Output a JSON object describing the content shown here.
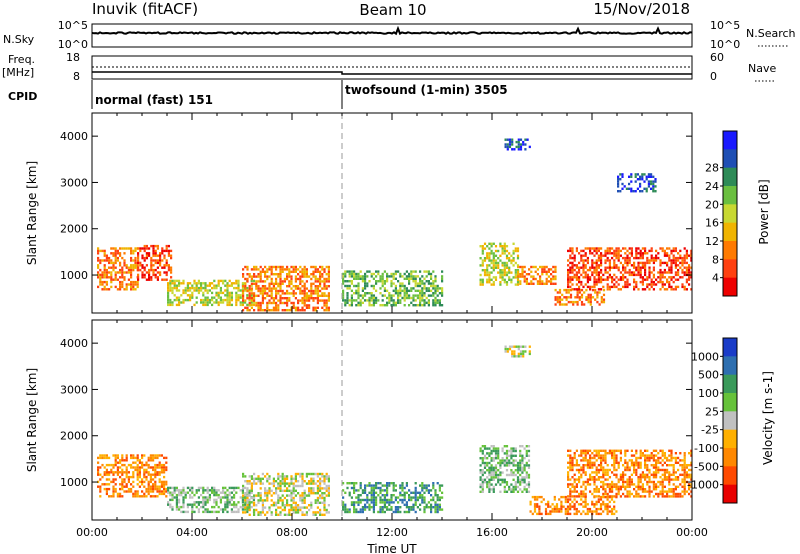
{
  "header": {
    "station": "Inuvik (fitACF)",
    "beam": "Beam 10",
    "date": "15/Nov/2018"
  },
  "top_panels": {
    "nsky_label": "N.Sky",
    "nsky_ticks": [
      "10^5",
      "10^0"
    ],
    "nsearch_label": "N.Search",
    "nsearch_ticks": [
      "10^5",
      "10^0"
    ],
    "freq_label": "Freq.",
    "freq_unit": "[MHz]",
    "freq_ticks": [
      "18",
      "8"
    ],
    "nave_label": "Nave",
    "nave_ticks": [
      "60",
      "0"
    ],
    "cpid_label": "CPID",
    "cpid_segments": [
      {
        "label": "normal (fast) 151",
        "start_hour": 0
      },
      {
        "label": "twofsound (1-min) 3505",
        "start_hour": 10
      }
    ]
  },
  "chart_data": [
    {
      "type": "heatmap",
      "title": "",
      "xlabel": "",
      "ylabel": "Slant Range [km]",
      "xlim": [
        0,
        24
      ],
      "ylim": [
        180,
        4500
      ],
      "yticks": [
        "1000",
        "2000",
        "3000",
        "4000"
      ],
      "colorbar": {
        "label": "Power [dB]",
        "ticks": [
          "4",
          "8",
          "12",
          "16",
          "20",
          "24",
          "28"
        ],
        "colors": [
          "#1a1aff",
          "#1f4fb4",
          "#2e8b57",
          "#6abf40",
          "#c8d832",
          "#f0b400",
          "#ff7a00",
          "#ff4010",
          "#ee0000"
        ]
      },
      "echo_regions": [
        {
          "hours": [
            0.2,
            1.8
          ],
          "range_km": [
            700,
            1600
          ],
          "level": 6
        },
        {
          "hours": [
            1.8,
            3.2
          ],
          "range_km": [
            900,
            1650
          ],
          "level": 7
        },
        {
          "hours": [
            3.0,
            6.5
          ],
          "range_km": [
            350,
            900
          ],
          "level": 4
        },
        {
          "hours": [
            6.0,
            9.5
          ],
          "range_km": [
            250,
            1200
          ],
          "level": 6
        },
        {
          "hours": [
            10.0,
            14.0
          ],
          "range_km": [
            350,
            1100
          ],
          "level": 3
        },
        {
          "hours": [
            15.5,
            17.0
          ],
          "range_km": [
            800,
            1700
          ],
          "level": 4
        },
        {
          "hours": [
            17.0,
            18.5
          ],
          "range_km": [
            800,
            1200
          ],
          "level": 6
        },
        {
          "hours": [
            18.5,
            20.5
          ],
          "range_km": [
            350,
            700
          ],
          "level": 6
        },
        {
          "hours": [
            19.0,
            24.0
          ],
          "range_km": [
            700,
            1600
          ],
          "level": 7
        },
        {
          "hours": [
            16.5,
            17.5
          ],
          "range_km": [
            3700,
            3950
          ],
          "level": 1
        },
        {
          "hours": [
            21.0,
            22.5
          ],
          "range_km": [
            2800,
            3200
          ],
          "level": 1
        }
      ]
    },
    {
      "type": "heatmap",
      "title": "",
      "xlabel": "Time UT",
      "ylabel": "Slant Range [km]",
      "xlim": [
        0,
        24
      ],
      "ylim": [
        180,
        4500
      ],
      "xticks": [
        "00:00",
        "04:00",
        "08:00",
        "12:00",
        "16:00",
        "20:00",
        "00:00"
      ],
      "yticks": [
        "1000",
        "2000",
        "3000",
        "4000"
      ],
      "colorbar": {
        "label": "Velocity [m s-1]",
        "ticks": [
          "1000",
          "500",
          "100",
          "25",
          "-25",
          "-100",
          "-500",
          "-1000"
        ],
        "colors": [
          "#1a3cc8",
          "#2e6fb0",
          "#3a9a5a",
          "#66c23a",
          "#c0c0c0",
          "#ffb000",
          "#ff8800",
          "#ff4a00",
          "#e80000"
        ]
      },
      "echo_regions": [
        {
          "hours": [
            0.2,
            3.0
          ],
          "range_km": [
            700,
            1600
          ],
          "level": 6
        },
        {
          "hours": [
            3.0,
            6.5
          ],
          "range_km": [
            350,
            900
          ],
          "level": 3
        },
        {
          "hours": [
            6.0,
            9.5
          ],
          "range_km": [
            300,
            1200
          ],
          "level": 4
        },
        {
          "hours": [
            10.0,
            14.0
          ],
          "range_km": [
            350,
            1000
          ],
          "level": 2
        },
        {
          "hours": [
            15.5,
            17.5
          ],
          "range_km": [
            800,
            1800
          ],
          "level": 3
        },
        {
          "hours": [
            17.5,
            21.0
          ],
          "range_km": [
            300,
            700
          ],
          "level": 6
        },
        {
          "hours": [
            19.0,
            24.0
          ],
          "range_km": [
            700,
            1700
          ],
          "level": 6
        },
        {
          "hours": [
            16.5,
            17.5
          ],
          "range_km": [
            3700,
            3950
          ],
          "level": 4
        }
      ]
    }
  ]
}
